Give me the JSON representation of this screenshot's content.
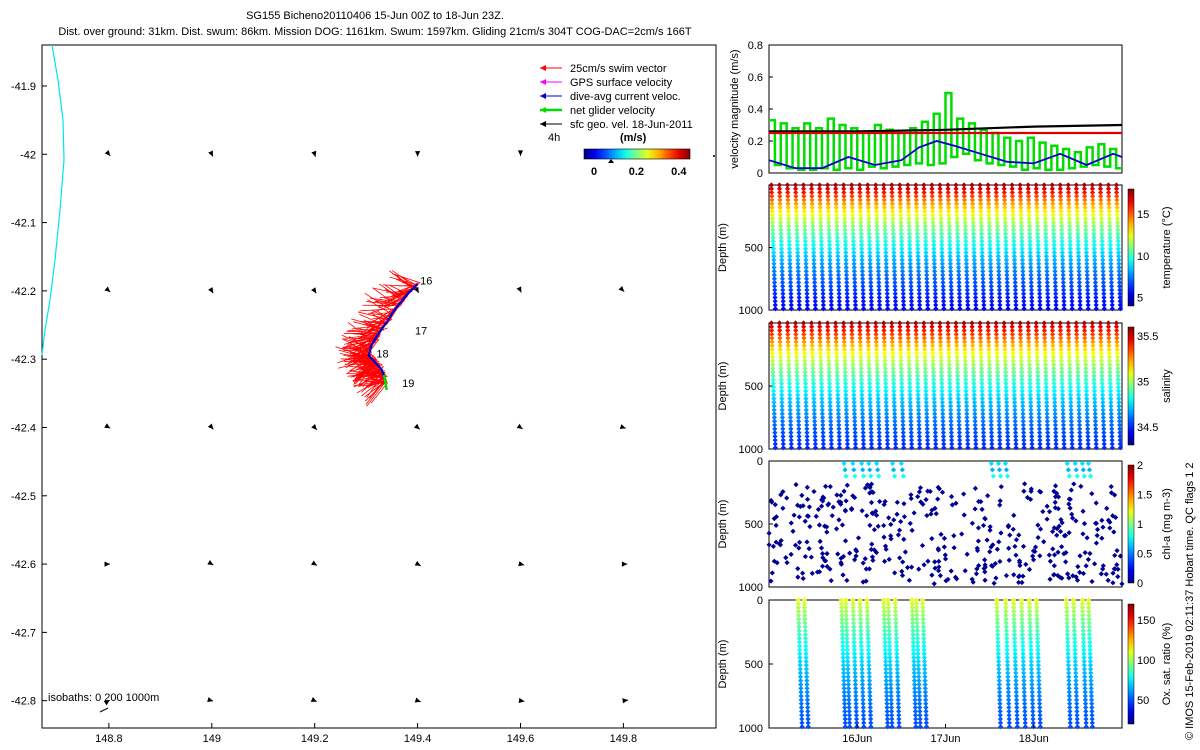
{
  "title": "SG155 Bicheno20110406 15-Jun 00Z to 18-Jun 23Z.",
  "subtitle": "Dist. over ground: 31km. Dist. swum: 86km. Mission DOG: 1161km. Swum: 1597km. Gliding 21cm/s 304T COG-DAC=2cm/s 166T",
  "credit": "© IMOS 15-Feb-2019 02:11:37 Hobart time. QC flags 1  2",
  "colors": {
    "swim": "#ff0000",
    "gps": "#ff00ff",
    "dac": "#0000cc",
    "net": "#00dd00",
    "geo": "#000000",
    "coast": "#00e5ee",
    "speed_line": "#000000",
    "surf_line": "#dd0000"
  },
  "chart_data": [
    {
      "type": "scatter",
      "name": "map",
      "x_ticks": [
        "148.8",
        "149",
        "149.2",
        "149.4",
        "149.6",
        "149.8"
      ],
      "y_ticks": [
        "-41.9",
        "-42",
        "-42.1",
        "-42.2",
        "-42.3",
        "-42.4",
        "-42.5",
        "-42.6",
        "-42.7",
        "-42.8"
      ],
      "xlim": [
        148.67,
        149.98
      ],
      "ylim": [
        -42.84,
        -41.84
      ],
      "legend": [
        {
          "label": "25cm/s swim vector",
          "color_key": "swim"
        },
        {
          "label": "GPS surface velocity",
          "color_key": "gps"
        },
        {
          "label": "dive-avg current veloc.",
          "color_key": "dac"
        },
        {
          "label": "net glider velocity",
          "color_key": "net"
        },
        {
          "label": "sfc geo. vel. 18-Jun-2011",
          "color_key": "geo"
        }
      ],
      "legend_loc": "top-right",
      "colorbar": {
        "label": "(m/s)",
        "ticks": [
          "0",
          "0.2",
          "0.4"
        ],
        "extra": "4h",
        "range": [
          0,
          0.5
        ]
      },
      "isobath_label": "isobaths: 0   200  1000m",
      "day_labels": [
        {
          "text": "16",
          "lon": 149.405,
          "lat": -42.185
        },
        {
          "text": "17",
          "lon": 149.395,
          "lat": -42.258
        },
        {
          "text": "18",
          "lon": 149.32,
          "lat": -42.292
        },
        {
          "text": "19",
          "lon": 149.37,
          "lat": -42.335
        }
      ],
      "track": [
        [
          149.4,
          -42.19
        ],
        [
          149.38,
          -42.205
        ],
        [
          149.355,
          -42.228
        ],
        [
          149.338,
          -42.248
        ],
        [
          149.322,
          -42.265
        ],
        [
          149.31,
          -42.28
        ],
        [
          149.305,
          -42.295
        ],
        [
          149.318,
          -42.305
        ],
        [
          149.33,
          -42.315
        ],
        [
          149.335,
          -42.325
        ],
        [
          149.338,
          -42.335
        ]
      ],
      "geo_vectors": [
        [
          148.8,
          -42.0,
          0.05,
          -0.06
        ],
        [
          149.0,
          -42.0,
          0.04,
          -0.085
        ],
        [
          149.2,
          -42.0,
          0.03,
          -0.095
        ],
        [
          149.4,
          -42.0,
          0.0,
          -0.085
        ],
        [
          149.6,
          -42.0,
          0.0,
          -0.06
        ],
        [
          148.8,
          -42.2,
          0.05,
          -0.045
        ],
        [
          149.0,
          -42.2,
          0.05,
          -0.085
        ],
        [
          149.2,
          -42.2,
          0.06,
          -0.09
        ],
        [
          149.4,
          -42.2,
          0.04,
          -0.075
        ],
        [
          149.6,
          -42.2,
          0.03,
          -0.06
        ],
        [
          149.8,
          -42.2,
          0.03,
          -0.03
        ],
        [
          148.8,
          -42.4,
          0.05,
          -0.03
        ],
        [
          149.0,
          -42.4,
          0.06,
          -0.07
        ],
        [
          149.2,
          -42.4,
          0.08,
          -0.09
        ],
        [
          149.4,
          -42.4,
          0.08,
          -0.07
        ],
        [
          149.6,
          -42.4,
          0.08,
          -0.055
        ],
        [
          149.8,
          -42.4,
          0.09,
          -0.03
        ],
        [
          148.8,
          -42.6,
          0.04,
          0.0
        ],
        [
          149.0,
          -42.6,
          0.06,
          -0.035
        ],
        [
          149.2,
          -42.6,
          0.09,
          -0.055
        ],
        [
          149.4,
          -42.6,
          0.12,
          -0.065
        ],
        [
          149.6,
          -42.6,
          0.14,
          -0.035
        ],
        [
          149.8,
          -42.6,
          0.15,
          0.0
        ],
        [
          148.8,
          -42.8,
          0.03,
          0.02
        ],
        [
          149.0,
          -42.8,
          0.05,
          -0.015
        ],
        [
          149.2,
          -42.8,
          0.08,
          -0.035
        ],
        [
          149.4,
          -42.8,
          0.12,
          -0.04
        ],
        [
          149.6,
          -42.8,
          0.15,
          -0.02
        ],
        [
          149.8,
          -42.8,
          0.18,
          0.02
        ]
      ]
    },
    {
      "type": "line",
      "name": "velocity",
      "ylabel": "velocity magnitude (m/s)",
      "ylim": [
        0,
        0.8
      ],
      "y_ticks": [
        "0",
        "0.2",
        "0.4",
        "0.6",
        "0.8"
      ],
      "xlim": [
        15.0,
        19.0
      ],
      "x_ticks": [
        {
          "label": "16Jun",
          "value": 16.0
        },
        {
          "label": "17Jun",
          "value": 17.0
        },
        {
          "label": "18Jun",
          "value": 18.0
        }
      ],
      "net_velocity": [
        0.33,
        0.05,
        0.31,
        0.03,
        0.28,
        0.02,
        0.31,
        0.02,
        0.28,
        0.03,
        0.34,
        0.02,
        0.3,
        0.03,
        0.28,
        0.02,
        0.26,
        0.04,
        0.3,
        0.03,
        0.27,
        0.04,
        0.25,
        0.05,
        0.28,
        0.06,
        0.32,
        0.05,
        0.37,
        0.06,
        0.5,
        0.1,
        0.34,
        0.12,
        0.31,
        0.08,
        0.27,
        0.06,
        0.25,
        0.05,
        0.22,
        0.04,
        0.2,
        0.02,
        0.22,
        0.03,
        0.19,
        0.02,
        0.17,
        0.02,
        0.15,
        0.03,
        0.13,
        0.04,
        0.16,
        0.05,
        0.18,
        0.04,
        0.15,
        0.03
      ],
      "series": [
        {
          "name": "speed",
          "color_key": "speed_line",
          "x": [
            15.0,
            16.0,
            17.0,
            18.0,
            19.0
          ],
          "values": [
            0.26,
            0.26,
            0.27,
            0.29,
            0.3
          ]
        },
        {
          "name": "surface",
          "color_key": "surf_line",
          "x": [
            15.0,
            19.0
          ],
          "values": [
            0.25,
            0.25
          ]
        },
        {
          "name": "dac",
          "color_key": "dac",
          "x": [
            15.0,
            15.3,
            15.6,
            15.9,
            16.2,
            16.5,
            16.7,
            16.9,
            17.1,
            17.4,
            17.7,
            18.0,
            18.3,
            18.6,
            18.9,
            19.0
          ],
          "values": [
            0.08,
            0.03,
            0.03,
            0.1,
            0.05,
            0.08,
            0.16,
            0.2,
            0.17,
            0.12,
            0.07,
            0.06,
            0.12,
            0.05,
            0.12,
            0.1
          ]
        }
      ]
    },
    {
      "type": "scatter",
      "name": "temperature",
      "ylabel": "Depth (m)",
      "ylim": [
        1000,
        0
      ],
      "y_ticks": [
        "500",
        "1000"
      ],
      "colorbar": {
        "label": "temperature (°C)",
        "ticks": [
          "5",
          "10",
          "15"
        ],
        "range": [
          4,
          18
        ]
      },
      "profiles": 44,
      "surface_value": 17.5,
      "deep_value": 4.5
    },
    {
      "type": "scatter",
      "name": "salinity",
      "ylabel": "Depth (m)",
      "ylim": [
        1000,
        0
      ],
      "y_ticks": [
        "500",
        "1000"
      ],
      "colorbar": {
        "label": "salinity",
        "ticks": [
          "34.5",
          "35",
          "35.5"
        ],
        "range": [
          34.3,
          35.6
        ]
      },
      "profiles": 44,
      "surface_value": 35.55,
      "deep_value": 34.4
    },
    {
      "type": "scatter",
      "name": "chl-a",
      "ylabel": "Depth (m)",
      "ylim": [
        1000,
        0
      ],
      "y_ticks": [
        "0",
        "500",
        "1000"
      ],
      "colorbar": {
        "label": "chl-a (mg m-3)",
        "ticks": [
          "0",
          "0.5",
          "1",
          "1.5",
          "2"
        ],
        "range": [
          0,
          2
        ]
      },
      "surface_value": 0.6,
      "deep_value": 0.0
    },
    {
      "type": "scatter",
      "name": "oxygen",
      "ylabel": "Depth (m)",
      "ylim": [
        1000,
        0
      ],
      "y_ticks": [
        "0",
        "500",
        "1000"
      ],
      "colorbar": {
        "label": "Ox. sat. ratio (%)",
        "ticks": [
          "50",
          "100",
          "150"
        ],
        "range": [
          20,
          170
        ]
      },
      "profile_times": [
        15.33,
        15.4,
        15.82,
        15.87,
        15.95,
        16.03,
        16.11,
        16.3,
        16.35,
        16.43,
        16.62,
        16.67,
        16.74,
        17.58,
        17.68,
        17.77,
        17.86,
        17.95,
        18.03,
        18.37,
        18.45,
        18.55,
        18.62
      ],
      "surface_value": 110,
      "deep_value": 30
    }
  ]
}
